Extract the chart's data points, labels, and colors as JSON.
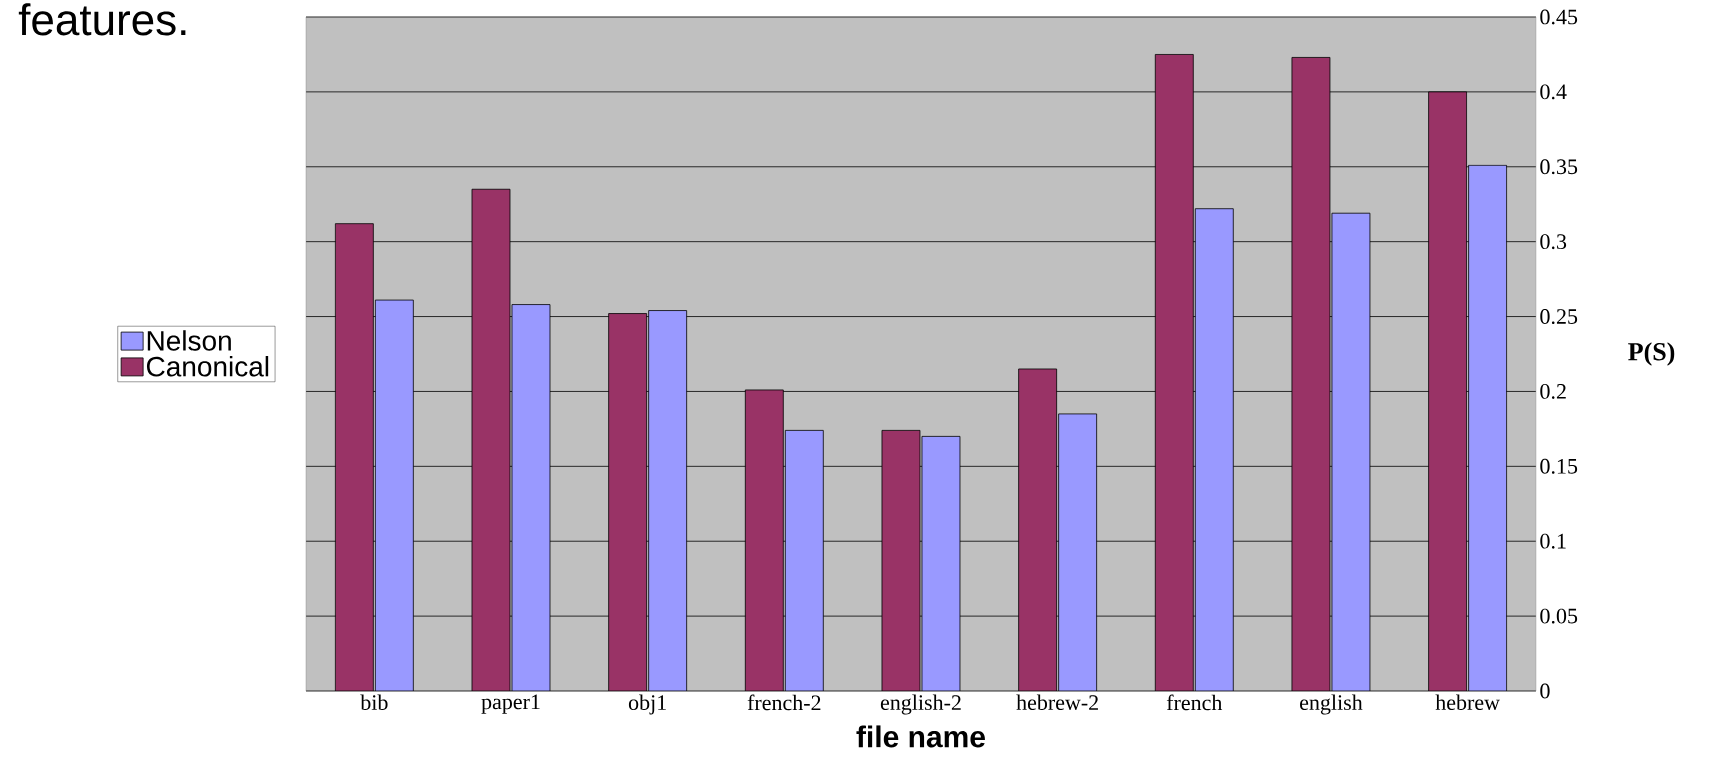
{
  "chart_data": {
    "type": "bar",
    "categories": [
      "bib",
      "paper1",
      "obj1",
      "french-2",
      "english-2",
      "hebrew-2",
      "french",
      "english",
      "hebrew"
    ],
    "series": [
      {
        "name": "Canonical",
        "color": "#993366",
        "values": [
          0.312,
          0.335,
          0.252,
          0.201,
          0.174,
          0.215,
          0.425,
          0.423,
          0.4
        ]
      },
      {
        "name": "Nelson",
        "color": "#9999ff",
        "values": [
          0.261,
          0.258,
          0.254,
          0.174,
          0.17,
          0.185,
          0.322,
          0.319,
          0.351
        ]
      }
    ],
    "xlabel": "file name",
    "ylabel": "P(S)",
    "ylim": [
      0,
      0.45
    ],
    "yticks": [
      0,
      0.05,
      0.1,
      0.15,
      0.2,
      0.25,
      0.3,
      0.35,
      0.4,
      0.45
    ],
    "grid": "y",
    "legend": "left",
    "annotations": [
      "features."
    ]
  }
}
